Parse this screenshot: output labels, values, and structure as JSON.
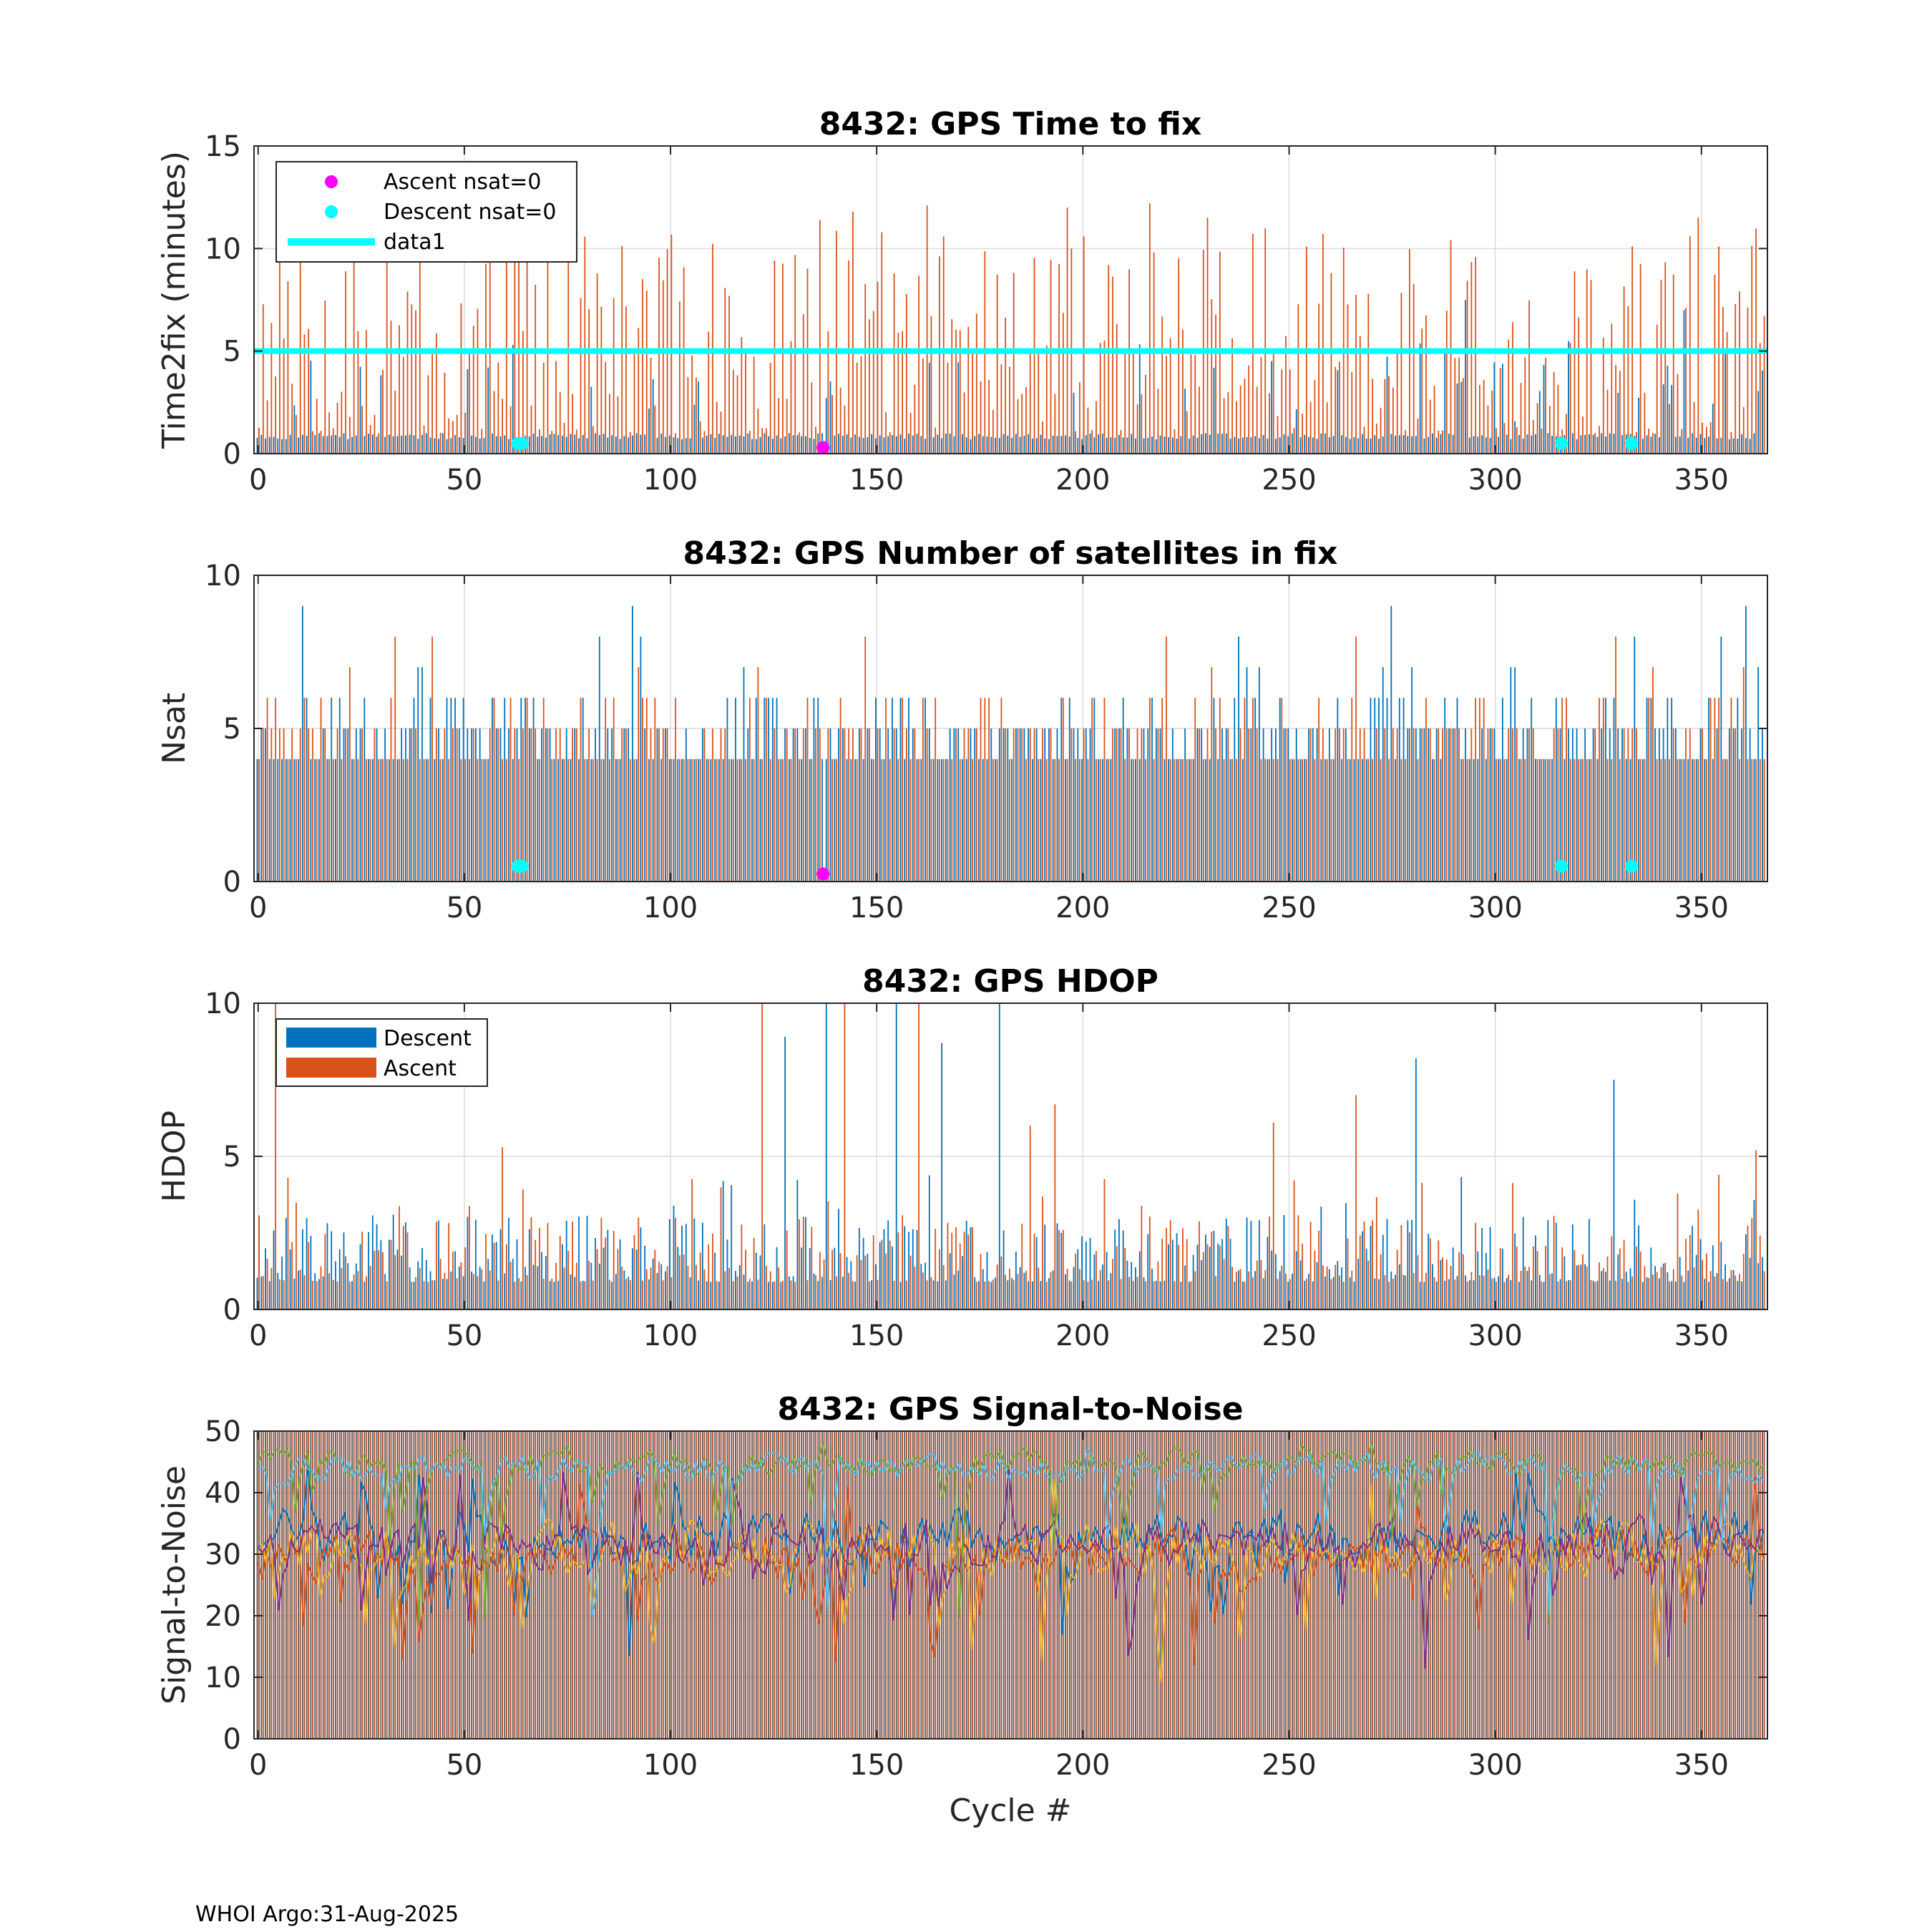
{
  "footer": "WHOI Argo:31-Aug-2025",
  "colors": {
    "descent": "#0072BD",
    "ascent": "#D95319",
    "ascent_zero": "#FF00FF",
    "descent_zero": "#00FFFF",
    "data1": "#00FFFF",
    "snr_lines": [
      "#0072BD",
      "#D95319",
      "#EDB120",
      "#7E2F8E",
      "#77AC30",
      "#4DBEEE"
    ]
  },
  "chart_data": [
    {
      "type": "bar",
      "name": "time2fix",
      "title": "8432: GPS Time to fix",
      "xlabel": "",
      "ylabel": "Time2fix (minutes)",
      "xlim": [
        -1,
        366
      ],
      "ylim": [
        0,
        15
      ],
      "xticks": [
        "0",
        "50",
        "100",
        "150",
        "200",
        "250",
        "300",
        "350"
      ],
      "yticks": [
        "0",
        "5",
        "10",
        "15"
      ],
      "grid": true,
      "legend": {
        "location": "top-left",
        "entries": [
          {
            "label": "Ascent nsat=0",
            "marker": "dot",
            "color": "#FF00FF"
          },
          {
            "label": "Descent nsat=0",
            "marker": "dot",
            "color": "#00FFFF"
          },
          {
            "label": "data1",
            "marker": "line",
            "color": "#00FFFF"
          }
        ]
      },
      "series_note": "Descent (blue) and Ascent (orange) per-cycle values, cycles 0-365; descent mostly ~0.8 min, ascent typically 1-12 min",
      "reference_line": {
        "name": "data1",
        "y": 5
      },
      "ascent_zero_points": [
        [
          137,
          0.3
        ]
      ],
      "descent_zero_points": [
        [
          63,
          0.5
        ],
        [
          64,
          0.5
        ],
        [
          316,
          0.5
        ],
        [
          333,
          0.5
        ]
      ],
      "peak_ascent_cycles": [
        [
          5,
          9.5
        ],
        [
          39,
          11.2
        ],
        [
          65,
          11.5
        ],
        [
          136,
          11.4
        ],
        [
          144,
          11.8
        ],
        [
          162,
          12.1
        ],
        [
          196,
          12.0
        ],
        [
          216,
          12.2
        ],
        [
          230,
          11.5
        ],
        [
          349,
          11.5
        ]
      ],
      "seed": 11
    },
    {
      "type": "bar",
      "name": "nsat",
      "title": "8432: GPS Number of satellites in fix",
      "xlabel": "",
      "ylabel": "Nsat",
      "xlim": [
        -1,
        366
      ],
      "ylim": [
        0,
        10
      ],
      "xticks": [
        "0",
        "50",
        "100",
        "150",
        "200",
        "250",
        "300",
        "350"
      ],
      "yticks": [
        "0",
        "5",
        "10"
      ],
      "grid": true,
      "series_note": "Descent and Ascent satellite counts per cycle, mostly 4-6, peaks 8-9",
      "ascent_zero_points": [
        [
          137,
          0.25
        ]
      ],
      "descent_zero_points": [
        [
          63,
          0.5
        ],
        [
          64,
          0.5
        ],
        [
          316,
          0.5
        ],
        [
          333,
          0.5
        ]
      ],
      "peak_descent_cycles": [
        [
          11,
          9
        ],
        [
          91,
          9
        ],
        [
          275,
          9
        ],
        [
          361,
          9
        ]
      ],
      "seed": 23
    },
    {
      "type": "bar",
      "name": "hdop",
      "title": "8432: GPS HDOP",
      "xlabel": "",
      "ylabel": "HDOP",
      "xlim": [
        -1,
        366
      ],
      "ylim": [
        0,
        10
      ],
      "xticks": [
        "0",
        "50",
        "100",
        "150",
        "200",
        "250",
        "300",
        "350"
      ],
      "yticks": [
        "0",
        "5",
        "10"
      ],
      "grid": true,
      "legend": {
        "location": "top-left",
        "entries": [
          {
            "label": "Descent",
            "marker": "bar",
            "color": "#0072BD"
          },
          {
            "label": "Ascent",
            "marker": "bar",
            "color": "#D95319"
          }
        ]
      },
      "series_note": "Descent and Ascent HDOP per cycle, mostly 1-2.5",
      "peaks": [
        [
          4,
          10,
          "ascent"
        ],
        [
          59,
          5.3,
          "ascent"
        ],
        [
          122,
          10,
          "ascent"
        ],
        [
          128,
          8.9,
          "descent"
        ],
        [
          138,
          10,
          "descent"
        ],
        [
          142,
          10,
          "ascent"
        ],
        [
          155,
          10,
          "descent"
        ],
        [
          160,
          10,
          "ascent"
        ],
        [
          166,
          8.7,
          "descent"
        ],
        [
          180,
          10,
          "descent"
        ],
        [
          187,
          6.0,
          "ascent"
        ],
        [
          193,
          6.7,
          "ascent"
        ],
        [
          246,
          6.1,
          "ascent"
        ],
        [
          266,
          7.0,
          "ascent"
        ],
        [
          281,
          8.2,
          "descent"
        ],
        [
          329,
          7.5,
          "descent"
        ],
        [
          363,
          5.2,
          "ascent"
        ]
      ],
      "seed": 37
    },
    {
      "type": "line",
      "name": "snr",
      "title": "8432: GPS Signal-to-Noise",
      "xlabel": "Cycle #",
      "ylabel": "Signal-to-Noise",
      "xlim": [
        -1,
        366
      ],
      "ylim": [
        0,
        50
      ],
      "xticks": [
        "0",
        "50",
        "100",
        "150",
        "200",
        "250",
        "300",
        "350"
      ],
      "yticks": [
        "0",
        "10",
        "20",
        "30",
        "40",
        "50"
      ],
      "grid": true,
      "series_note": "Six satellite SNR traces per cycle plus background bars: two upper traces ~42-48, four traces ~25-40 with dips",
      "series_means": [
        33,
        30,
        31,
        32,
        45,
        44
      ],
      "seed": 51
    }
  ]
}
